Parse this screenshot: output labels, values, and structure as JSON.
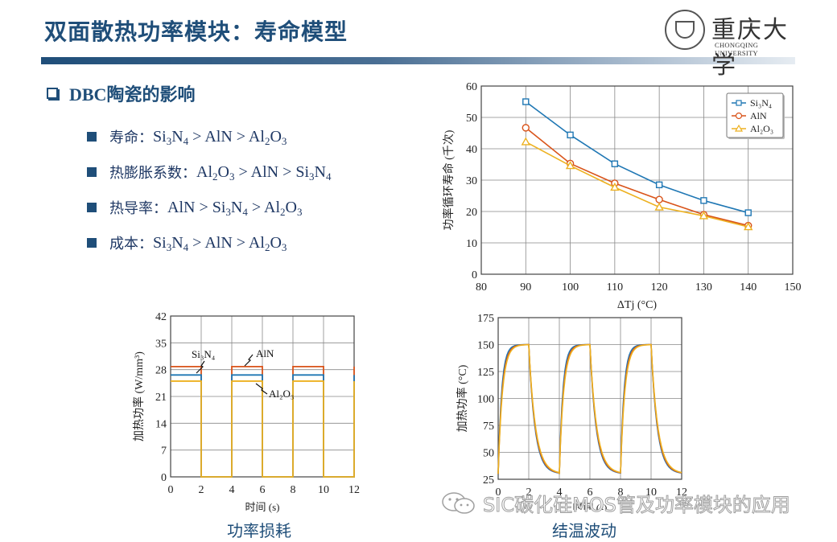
{
  "slide": {
    "title": "双面散热功率模块：寿命模型",
    "logo": {
      "name_cn": "重庆大学",
      "name_en": "CHONGQING UNIVERSITY"
    },
    "section_heading": "DBC陶瓷的影响",
    "bullets": [
      {
        "label": "寿命：",
        "value_html": "Si<sub>3</sub>N<sub>4</sub> &gt; AlN &gt; Al<sub>2</sub>O<sub>3</sub>"
      },
      {
        "label": "热膨胀系数：",
        "value_html": "Al<sub>2</sub>O<sub>3</sub> &gt; AlN &gt; Si<sub>3</sub>N<sub>4</sub>"
      },
      {
        "label": "热导率：",
        "value_html": "AlN &gt; Si<sub>3</sub>N<sub>4</sub> &gt; Al<sub>2</sub>O<sub>3</sub>"
      },
      {
        "label": "成本：",
        "value_html": "Si<sub>3</sub>N<sub>4</sub> &gt; AlN &gt; Al<sub>2</sub>O<sub>3</sub>"
      }
    ],
    "captions": {
      "power_loss": "功率损耗",
      "junction_temp": "结温波动"
    },
    "watermark": "SIC碳化硅MOS管及功率模块的应用"
  },
  "colors": {
    "si3n4": "#1f77b4",
    "aln": "#d95319",
    "al2o3": "#edb120",
    "title": "#1f4e79",
    "grid": "#b0b0b0"
  },
  "chart_data": [
    {
      "id": "lifetime",
      "type": "line",
      "title": "",
      "xlabel": "ΔTj (°C)",
      "ylabel": "功率循环寿命 (千次)",
      "xlim": [
        80,
        150
      ],
      "ylim": [
        0,
        60
      ],
      "xticks": [
        80,
        90,
        100,
        110,
        120,
        130,
        140,
        150
      ],
      "yticks": [
        0,
        10,
        20,
        30,
        40,
        50,
        60
      ],
      "grid": true,
      "legend_position": "upper right",
      "x": [
        90,
        100,
        110,
        120,
        130,
        140
      ],
      "series": [
        {
          "name": "Si3N4",
          "marker": "square",
          "color": "#1f77b4",
          "values": [
            55.0,
            44.4,
            35.2,
            28.5,
            23.5,
            19.6
          ]
        },
        {
          "name": "AlN",
          "marker": "circle",
          "color": "#d95319",
          "values": [
            46.7,
            35.3,
            29.0,
            23.8,
            19.0,
            15.5
          ]
        },
        {
          "name": "Al2O3",
          "marker": "triangle",
          "color": "#edb120",
          "values": [
            42.2,
            34.6,
            27.7,
            21.4,
            18.6,
            15.1
          ]
        }
      ]
    },
    {
      "id": "power_loss",
      "type": "line",
      "title": "功率损耗",
      "xlabel": "时间 (s)",
      "ylabel": "加热功率 (W/mm³)",
      "xlim": [
        0,
        12
      ],
      "ylim": [
        0,
        42
      ],
      "xticks": [
        0,
        2,
        4,
        6,
        8,
        10,
        12
      ],
      "yticks": [
        0,
        7,
        14,
        21,
        28,
        35,
        42
      ],
      "grid": true,
      "on_intervals": [
        [
          0,
          2
        ],
        [
          4,
          6
        ],
        [
          8,
          10
        ]
      ],
      "series": [
        {
          "name": "AlN",
          "color": "#d95319",
          "on_value": 28.8,
          "off_value": 0
        },
        {
          "name": "Si3N4",
          "color": "#1f77b4",
          "on_value": 26.6,
          "off_value": 0
        },
        {
          "name": "Al2O3",
          "color": "#edb120",
          "on_value": 25.0,
          "off_value": 0
        }
      ],
      "annotations": [
        "Si3N4",
        "AlN",
        "Al2O3"
      ]
    },
    {
      "id": "junction_temp",
      "type": "line",
      "title": "结温波动",
      "xlabel": "时间 (s)",
      "ylabel": "加热功率 (°C)",
      "xlim": [
        0,
        12
      ],
      "ylim": [
        25,
        175
      ],
      "xticks": [
        0,
        2,
        4,
        6,
        8,
        10,
        12
      ],
      "yticks": [
        25,
        50,
        75,
        100,
        125,
        150,
        175
      ],
      "grid": true,
      "period_s": 4,
      "heating_s": 2,
      "t_min": 30,
      "t_max": 150,
      "series": [
        {
          "name": "Si3N4",
          "color": "#1f77b4"
        },
        {
          "name": "AlN",
          "color": "#d95319"
        },
        {
          "name": "Al2O3",
          "color": "#edb120"
        }
      ]
    }
  ]
}
